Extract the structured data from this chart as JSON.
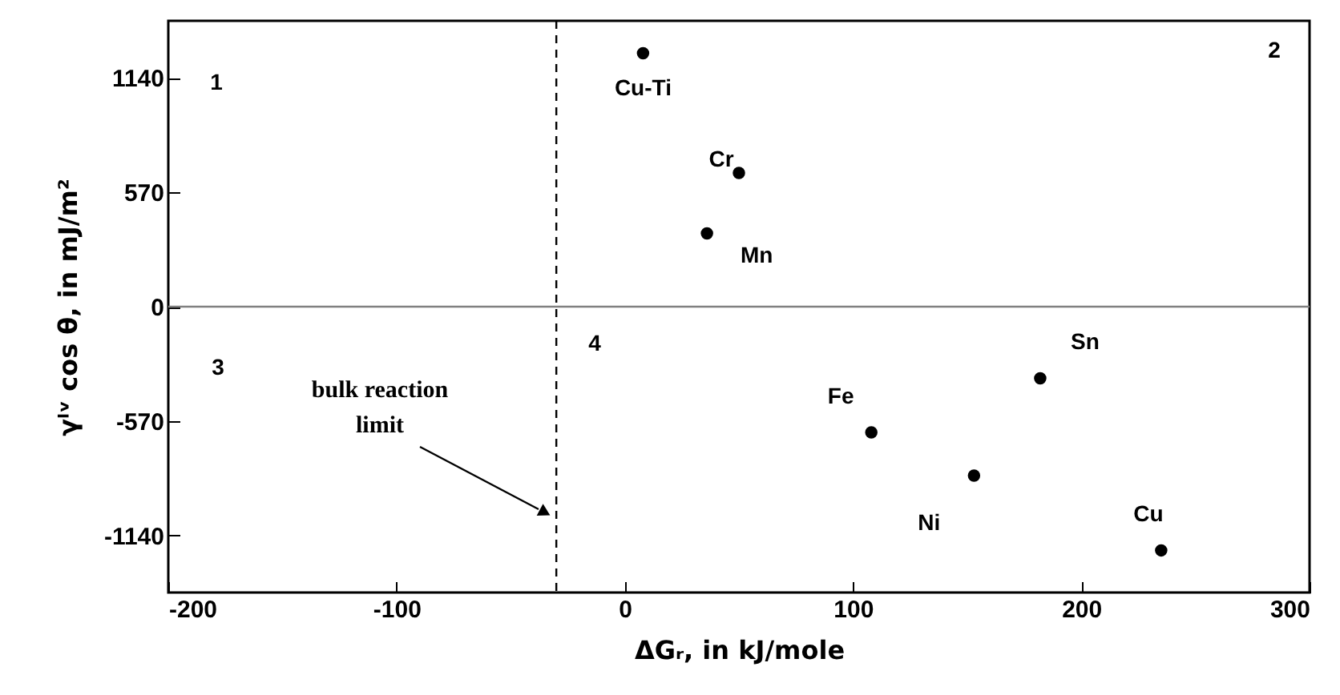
{
  "chart_data": {
    "type": "scatter",
    "xlabel": "ΔGᵣ, in kJ/mole",
    "ylabel": "γˡᵛ cos θ, in mJ/m²",
    "x": [
      8,
      50,
      36,
      182,
      108,
      153,
      235
    ],
    "series": [
      {
        "color": "#000000",
        "values": [
          1263,
          667,
          365,
          -357,
          -627,
          -842,
          -1215
        ]
      }
    ],
    "marker": "circle",
    "xlim": [
      -200,
      300
    ],
    "xticks": [
      -200,
      -100,
      0,
      100,
      200,
      300
    ],
    "ylim": [
      -1425,
      1425
    ],
    "yticks": [
      -1140,
      -570,
      0,
      570,
      1140
    ],
    "grid": false,
    "ref_lines": [
      {
        "axis": "y",
        "value": 0,
        "color": "#808080",
        "line_style": "solid"
      },
      {
        "axis": "x",
        "value": -30,
        "label": "bulk reaction limit",
        "color": "#000000",
        "line_style": "dashed"
      }
    ],
    "annotations": [
      {
        "text": "Cu-Ti",
        "x": 8,
        "y": 1263
      },
      {
        "text": "Cr",
        "x": 50,
        "y": 667
      },
      {
        "text": "Mn",
        "x": 36,
        "y": 365
      },
      {
        "text": "Sn",
        "x": 182,
        "y": -357
      },
      {
        "text": "Fe",
        "x": 108,
        "y": -627
      },
      {
        "text": "Ni",
        "x": 153,
        "y": -842
      },
      {
        "text": "Cu",
        "x": 235,
        "y": -1215
      },
      "1",
      "2",
      "3",
      "4"
    ]
  }
}
